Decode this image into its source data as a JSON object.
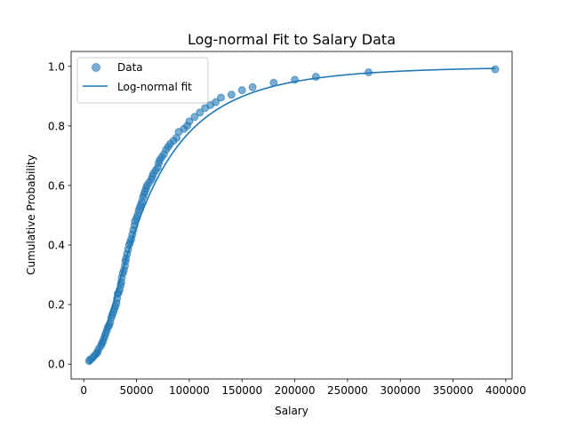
{
  "chart_data": {
    "type": "scatter",
    "title": "Log-normal Fit to Salary Data",
    "xlabel": "Salary",
    "ylabel": "Cumulative Probability",
    "xlim": [
      -12000,
      406000
    ],
    "ylim": [
      -0.05,
      1.05
    ],
    "xticks": [
      0,
      50000,
      100000,
      150000,
      200000,
      250000,
      300000,
      350000,
      400000
    ],
    "yticks": [
      0.0,
      0.2,
      0.4,
      0.6,
      0.8,
      1.0
    ],
    "xtick_labels": [
      "0",
      "50000",
      "100000",
      "150000",
      "200000",
      "250000",
      "300000",
      "350000",
      "400000"
    ],
    "ytick_labels": [
      "0.0",
      "0.2",
      "0.4",
      "0.6",
      "0.8",
      "1.0"
    ],
    "grid": false,
    "legend_position": "upper-left",
    "colors": {
      "data": "#1f77b4",
      "fit": "#1f77b4"
    },
    "series": [
      {
        "name": "Data",
        "type": "scatter",
        "points": [
          [
            5000,
            0.01
          ],
          [
            6000,
            0.015
          ],
          [
            8000,
            0.02
          ],
          [
            10000,
            0.028
          ],
          [
            12000,
            0.035
          ],
          [
            13000,
            0.04
          ],
          [
            14000,
            0.05
          ],
          [
            16000,
            0.06
          ],
          [
            17000,
            0.068
          ],
          [
            18000,
            0.075
          ],
          [
            19000,
            0.085
          ],
          [
            20000,
            0.095
          ],
          [
            21000,
            0.105
          ],
          [
            22000,
            0.115
          ],
          [
            23000,
            0.125
          ],
          [
            24000,
            0.13
          ],
          [
            25000,
            0.14
          ],
          [
            26000,
            0.155
          ],
          [
            27000,
            0.165
          ],
          [
            28000,
            0.175
          ],
          [
            29000,
            0.185
          ],
          [
            30000,
            0.195
          ],
          [
            31000,
            0.205
          ],
          [
            31500,
            0.22
          ],
          [
            32000,
            0.235
          ],
          [
            33000,
            0.24
          ],
          [
            34000,
            0.25
          ],
          [
            35000,
            0.265
          ],
          [
            35500,
            0.275
          ],
          [
            36000,
            0.29
          ],
          [
            37000,
            0.305
          ],
          [
            38000,
            0.315
          ],
          [
            39000,
            0.33
          ],
          [
            39500,
            0.345
          ],
          [
            40000,
            0.355
          ],
          [
            41000,
            0.37
          ],
          [
            42000,
            0.385
          ],
          [
            43000,
            0.4
          ],
          [
            44000,
            0.41
          ],
          [
            45000,
            0.42
          ],
          [
            46000,
            0.435
          ],
          [
            47000,
            0.45
          ],
          [
            48000,
            0.465
          ],
          [
            48500,
            0.48
          ],
          [
            50000,
            0.49
          ],
          [
            51000,
            0.5
          ],
          [
            52000,
            0.515
          ],
          [
            53000,
            0.525
          ],
          [
            54000,
            0.535
          ],
          [
            55000,
            0.545
          ],
          [
            56000,
            0.56
          ],
          [
            57000,
            0.57
          ],
          [
            58000,
            0.58
          ],
          [
            59000,
            0.59
          ],
          [
            60000,
            0.6
          ],
          [
            62000,
            0.61
          ],
          [
            64000,
            0.62
          ],
          [
            65000,
            0.63
          ],
          [
            66000,
            0.64
          ],
          [
            68000,
            0.65
          ],
          [
            70000,
            0.66
          ],
          [
            71000,
            0.675
          ],
          [
            72000,
            0.685
          ],
          [
            74000,
            0.695
          ],
          [
            76000,
            0.705
          ],
          [
            78000,
            0.72
          ],
          [
            80000,
            0.73
          ],
          [
            82000,
            0.74
          ],
          [
            85000,
            0.75
          ],
          [
            88000,
            0.76
          ],
          [
            90000,
            0.78
          ],
          [
            95000,
            0.79
          ],
          [
            98000,
            0.8
          ],
          [
            100000,
            0.815
          ],
          [
            105000,
            0.83
          ],
          [
            110000,
            0.845
          ],
          [
            115000,
            0.86
          ],
          [
            120000,
            0.87
          ],
          [
            125000,
            0.88
          ],
          [
            130000,
            0.895
          ],
          [
            140000,
            0.905
          ],
          [
            150000,
            0.92
          ],
          [
            160000,
            0.93
          ],
          [
            180000,
            0.945
          ],
          [
            200000,
            0.955
          ],
          [
            220000,
            0.965
          ],
          [
            270000,
            0.98
          ],
          [
            390000,
            0.99
          ]
        ]
      },
      {
        "name": "Log-normal fit",
        "type": "line",
        "mu": 10.9,
        "sigma": 0.8,
        "x_range": [
          5000,
          390000
        ]
      }
    ]
  }
}
